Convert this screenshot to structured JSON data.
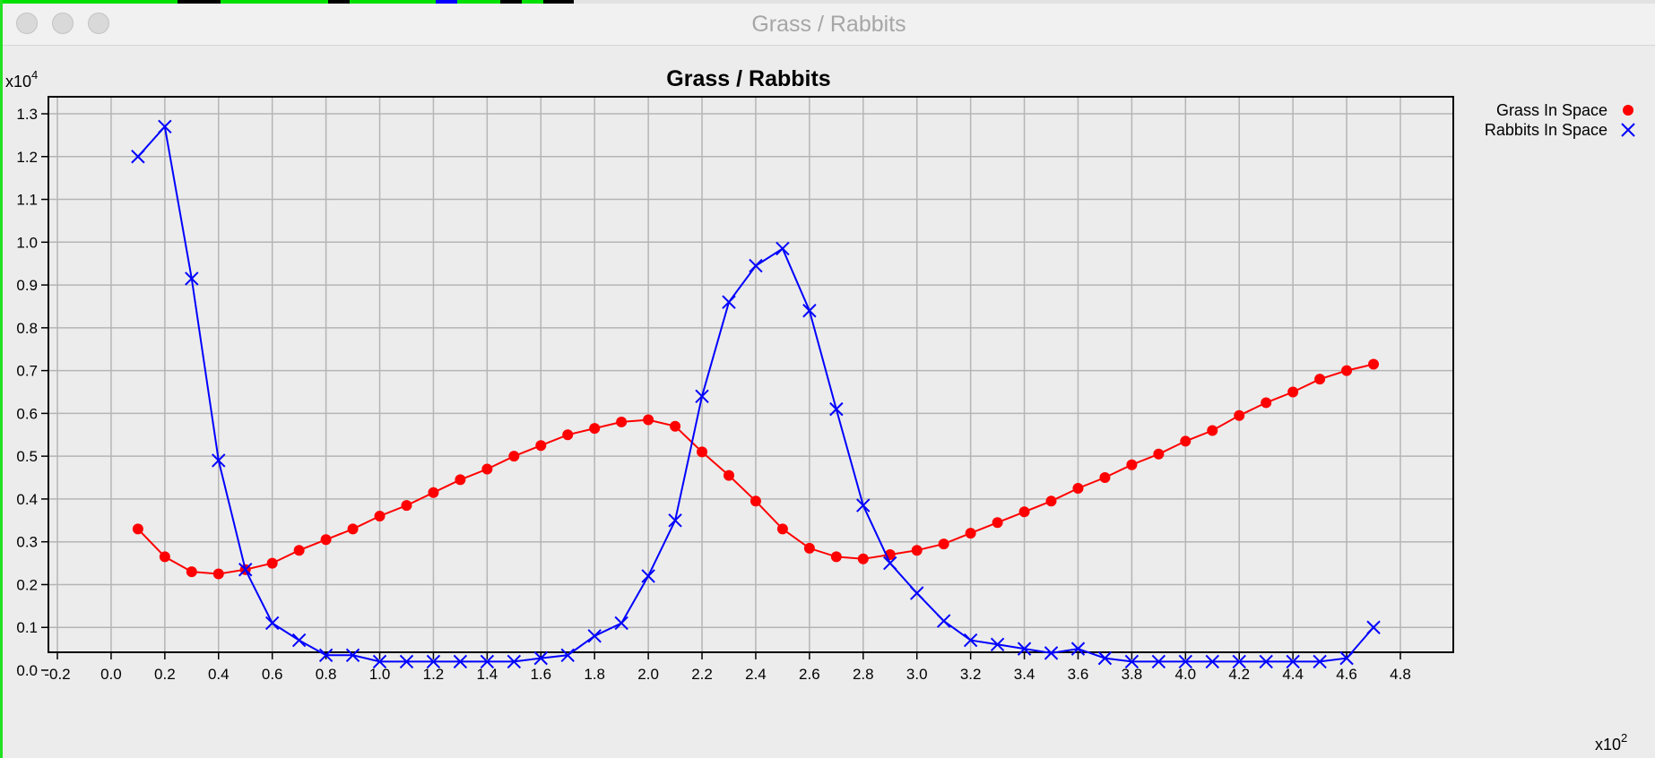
{
  "window": {
    "title": "Grass / Rabbits",
    "buttons": [
      "close",
      "minimize",
      "zoom"
    ]
  },
  "chart_data": {
    "type": "line",
    "title": "Grass / Rabbits",
    "xlabel": "",
    "ylabel": "",
    "x_multiplier": "x10",
    "x_multiplier_exp": "2",
    "y_multiplier": "x10",
    "y_multiplier_exp": "4",
    "xlim": [
      -0.2,
      4.8
    ],
    "ylim": [
      0.0,
      1.3
    ],
    "xticks": [
      "-0.2",
      "0.0",
      "0.2",
      "0.4",
      "0.6",
      "0.8",
      "1.0",
      "1.2",
      "1.4",
      "1.6",
      "1.8",
      "2.0",
      "2.2",
      "2.4",
      "2.6",
      "2.8",
      "3.0",
      "3.2",
      "3.4",
      "3.6",
      "3.8",
      "4.0",
      "4.2",
      "4.4",
      "4.6",
      "4.8"
    ],
    "yticks": [
      "0.0",
      "0.1",
      "0.2",
      "0.3",
      "0.4",
      "0.5",
      "0.6",
      "0.7",
      "0.8",
      "0.9",
      "1.0",
      "1.1",
      "1.2",
      "1.3"
    ],
    "grid": true,
    "legend_position": "top-right",
    "x": [
      0.1,
      0.2,
      0.3,
      0.4,
      0.5,
      0.6,
      0.7,
      0.8,
      0.9,
      1.0,
      1.1,
      1.2,
      1.3,
      1.4,
      1.5,
      1.6,
      1.7,
      1.8,
      1.9,
      2.0,
      2.1,
      2.2,
      2.3,
      2.4,
      2.5,
      2.6,
      2.7,
      2.8,
      2.9,
      3.0,
      3.1,
      3.2,
      3.3,
      3.4,
      3.5,
      3.6,
      3.7,
      3.8,
      3.9,
      4.0,
      4.1,
      4.2,
      4.3,
      4.4,
      4.5,
      4.6,
      4.7
    ],
    "series": [
      {
        "name": "Grass In Space",
        "color": "#ff0000",
        "marker": "circle",
        "values": [
          0.33,
          0.265,
          0.23,
          0.225,
          0.235,
          0.25,
          0.28,
          0.305,
          0.33,
          0.36,
          0.385,
          0.415,
          0.445,
          0.47,
          0.5,
          0.525,
          0.55,
          0.565,
          0.58,
          0.585,
          0.57,
          0.51,
          0.455,
          0.395,
          0.33,
          0.285,
          0.265,
          0.26,
          0.27,
          0.28,
          0.295,
          0.32,
          0.345,
          0.37,
          0.395,
          0.425,
          0.45,
          0.48,
          0.505,
          0.535,
          0.56,
          0.595,
          0.625,
          0.65,
          0.68,
          0.7,
          0.715
        ]
      },
      {
        "name": "Rabbits In Space",
        "color": "#0000ff",
        "marker": "x",
        "values": [
          1.2,
          1.27,
          0.915,
          0.49,
          0.235,
          0.11,
          0.07,
          0.035,
          0.035,
          0.02,
          0.02,
          0.02,
          0.02,
          0.02,
          0.02,
          0.028,
          0.035,
          0.08,
          0.11,
          0.22,
          0.35,
          0.64,
          0.86,
          0.945,
          0.985,
          0.84,
          0.61,
          0.385,
          0.25,
          0.18,
          0.115,
          0.07,
          0.06,
          0.05,
          0.04,
          0.05,
          0.028,
          0.02,
          0.02,
          0.02,
          0.02,
          0.02,
          0.02,
          0.02,
          0.02,
          0.028,
          0.1
        ]
      }
    ]
  }
}
